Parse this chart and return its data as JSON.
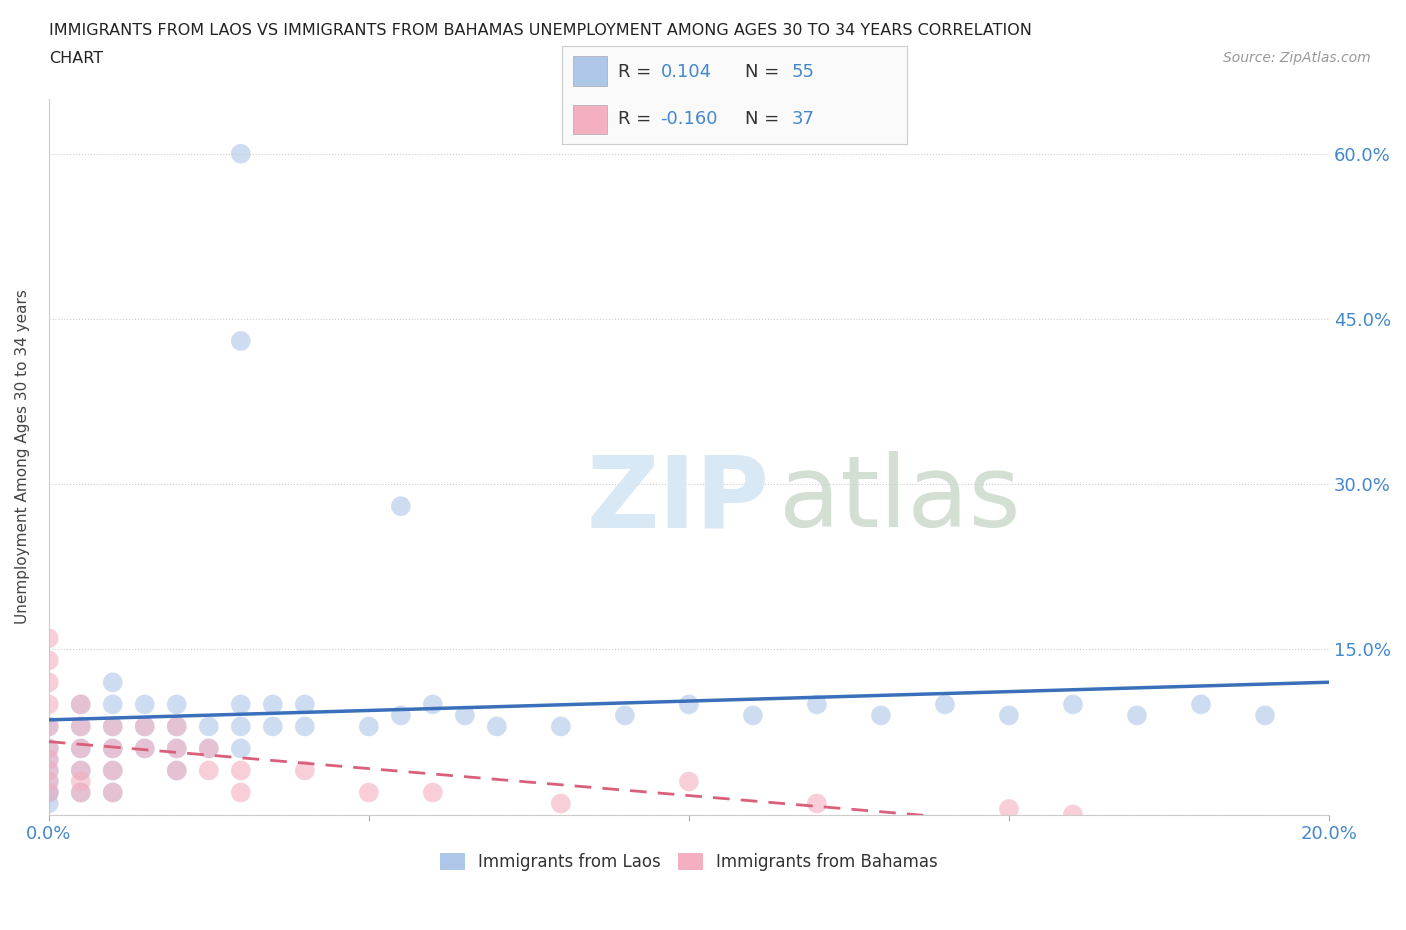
{
  "title_line1": "IMMIGRANTS FROM LAOS VS IMMIGRANTS FROM BAHAMAS UNEMPLOYMENT AMONG AGES 30 TO 34 YEARS CORRELATION",
  "title_line2": "CHART",
  "source_text": "Source: ZipAtlas.com",
  "ylabel": "Unemployment Among Ages 30 to 34 years",
  "xlim": [
    0.0,
    0.2
  ],
  "ylim": [
    0.0,
    0.65
  ],
  "ytick_positions": [
    0.0,
    0.15,
    0.3,
    0.45,
    0.6
  ],
  "ytick_labels": [
    "",
    "15.0%",
    "30.0%",
    "45.0%",
    "60.0%"
  ],
  "grid_color": "#cccccc",
  "background_color": "#ffffff",
  "laos_color": "#aec6e8",
  "bahamas_color": "#f4afc0",
  "laos_line_color": "#3a6fba",
  "bahamas_line_color": "#d95f7a",
  "laos_R": 0.104,
  "laos_N": 55,
  "bahamas_R": -0.16,
  "bahamas_N": 37,
  "legend_label_laos": "Immigrants from Laos",
  "legend_label_bahamas": "Immigrants from Bahamas",
  "watermark_zip": "ZIP",
  "watermark_atlas": "atlas",
  "tick_color": "#4488cc",
  "laos_x": [
    0.0,
    0.0,
    0.0,
    0.0,
    0.0,
    0.0,
    0.0,
    0.0,
    0.005,
    0.005,
    0.005,
    0.005,
    0.005,
    0.01,
    0.01,
    0.01,
    0.01,
    0.01,
    0.01,
    0.015,
    0.015,
    0.015,
    0.02,
    0.02,
    0.02,
    0.02,
    0.025,
    0.025,
    0.03,
    0.03,
    0.03,
    0.035,
    0.035,
    0.04,
    0.04,
    0.05,
    0.055,
    0.06,
    0.065,
    0.07,
    0.08,
    0.09,
    0.1,
    0.11,
    0.12,
    0.13,
    0.14,
    0.15,
    0.16,
    0.17,
    0.18,
    0.19,
    0.03,
    0.03,
    0.055
  ],
  "laos_y": [
    0.02,
    0.04,
    0.06,
    0.08,
    0.02,
    0.01,
    0.03,
    0.05,
    0.06,
    0.08,
    0.1,
    0.04,
    0.02,
    0.06,
    0.08,
    0.1,
    0.12,
    0.04,
    0.02,
    0.08,
    0.1,
    0.06,
    0.06,
    0.08,
    0.1,
    0.04,
    0.08,
    0.06,
    0.08,
    0.1,
    0.06,
    0.08,
    0.1,
    0.1,
    0.08,
    0.08,
    0.09,
    0.1,
    0.09,
    0.08,
    0.08,
    0.09,
    0.1,
    0.09,
    0.1,
    0.09,
    0.1,
    0.09,
    0.1,
    0.09,
    0.1,
    0.09,
    0.6,
    0.43,
    0.28
  ],
  "bahamas_x": [
    0.0,
    0.0,
    0.0,
    0.0,
    0.0,
    0.0,
    0.0,
    0.0,
    0.0,
    0.0,
    0.005,
    0.005,
    0.005,
    0.005,
    0.005,
    0.005,
    0.01,
    0.01,
    0.01,
    0.01,
    0.015,
    0.015,
    0.02,
    0.02,
    0.02,
    0.025,
    0.025,
    0.03,
    0.03,
    0.04,
    0.05,
    0.06,
    0.08,
    0.1,
    0.12,
    0.15,
    0.16
  ],
  "bahamas_y": [
    0.06,
    0.08,
    0.1,
    0.12,
    0.14,
    0.16,
    0.04,
    0.02,
    0.03,
    0.05,
    0.06,
    0.08,
    0.1,
    0.04,
    0.02,
    0.03,
    0.06,
    0.04,
    0.02,
    0.08,
    0.06,
    0.08,
    0.06,
    0.04,
    0.08,
    0.06,
    0.04,
    0.04,
    0.02,
    0.04,
    0.02,
    0.02,
    0.01,
    0.03,
    0.01,
    0.005,
    0.0
  ]
}
